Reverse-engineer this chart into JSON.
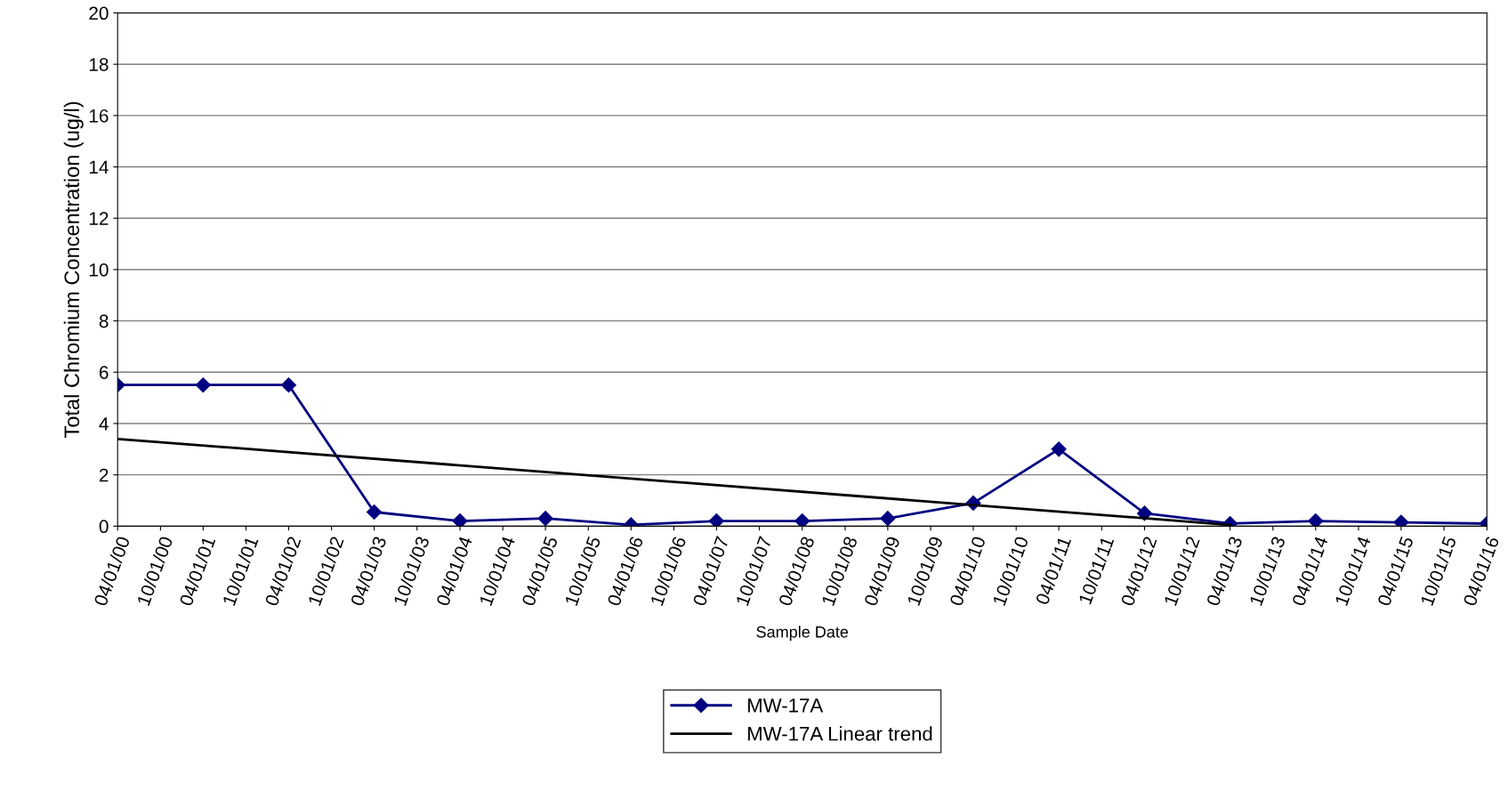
{
  "chart_data": {
    "type": "line",
    "xlabel": "Sample Date",
    "ylabel": "Total Chromium Concentration (ug/l)",
    "xlim": [
      "2000-04-01",
      "2016-04-01"
    ],
    "ylim": [
      0,
      20
    ],
    "yticks": [
      0,
      2,
      4,
      6,
      8,
      10,
      12,
      14,
      16,
      18,
      20
    ],
    "xticks": [
      {
        "value": "2000-04-01",
        "label": "04/01/00"
      },
      {
        "value": "2000-10-01",
        "label": "10/01/00"
      },
      {
        "value": "2001-04-01",
        "label": "04/01/01"
      },
      {
        "value": "2001-10-01",
        "label": "10/01/01"
      },
      {
        "value": "2002-04-01",
        "label": "04/01/02"
      },
      {
        "value": "2002-10-01",
        "label": "10/01/02"
      },
      {
        "value": "2003-04-01",
        "label": "04/01/03"
      },
      {
        "value": "2003-10-01",
        "label": "10/01/03"
      },
      {
        "value": "2004-04-01",
        "label": "04/01/04"
      },
      {
        "value": "2004-10-01",
        "label": "10/01/04"
      },
      {
        "value": "2005-04-01",
        "label": "04/01/05"
      },
      {
        "value": "2005-10-01",
        "label": "10/01/05"
      },
      {
        "value": "2006-04-01",
        "label": "04/01/06"
      },
      {
        "value": "2006-10-01",
        "label": "10/01/06"
      },
      {
        "value": "2007-04-01",
        "label": "04/01/07"
      },
      {
        "value": "2007-10-01",
        "label": "10/01/07"
      },
      {
        "value": "2008-04-01",
        "label": "04/01/08"
      },
      {
        "value": "2008-10-01",
        "label": "10/01/08"
      },
      {
        "value": "2009-04-01",
        "label": "04/01/09"
      },
      {
        "value": "2009-10-01",
        "label": "10/01/09"
      },
      {
        "value": "2010-04-01",
        "label": "04/01/10"
      },
      {
        "value": "2010-10-01",
        "label": "10/01/10"
      },
      {
        "value": "2011-04-01",
        "label": "04/01/11"
      },
      {
        "value": "2011-10-01",
        "label": "10/01/11"
      },
      {
        "value": "2012-04-01",
        "label": "04/01/12"
      },
      {
        "value": "2012-10-01",
        "label": "10/01/12"
      },
      {
        "value": "2013-04-01",
        "label": "04/01/13"
      },
      {
        "value": "2013-10-01",
        "label": "10/01/13"
      },
      {
        "value": "2014-04-01",
        "label": "04/01/14"
      },
      {
        "value": "2014-10-01",
        "label": "10/01/14"
      },
      {
        "value": "2015-04-01",
        "label": "04/01/15"
      },
      {
        "value": "2015-10-01",
        "label": "10/01/15"
      },
      {
        "value": "2016-04-01",
        "label": "04/01/16"
      }
    ],
    "grid": "y",
    "legend": "bottom",
    "line_style": "solid",
    "series": [
      {
        "name": "MW-17A",
        "color": "#000080",
        "marker": "diamond",
        "x": [
          "2000-04-01",
          "2001-04-01",
          "2002-04-01",
          "2003-04-01",
          "2004-04-01",
          "2005-04-01",
          "2006-04-01",
          "2007-04-01",
          "2008-04-01",
          "2009-04-01",
          "2010-04-01",
          "2011-04-01",
          "2012-04-01",
          "2013-04-01",
          "2014-04-01",
          "2015-04-01",
          "2016-04-01"
        ],
        "values": [
          5.5,
          5.5,
          5.5,
          0.55,
          0.2,
          0.3,
          0.05,
          0.2,
          0.2,
          0.3,
          0.9,
          3.0,
          0.5,
          0.1,
          0.2,
          0.15,
          0.1
        ]
      },
      {
        "name": "MW-17A Linear trend",
        "color": "#000000",
        "marker": "none",
        "x": [
          "2000-04-01",
          "2013-04-01"
        ],
        "values": [
          3.4,
          0.05
        ]
      }
    ]
  }
}
